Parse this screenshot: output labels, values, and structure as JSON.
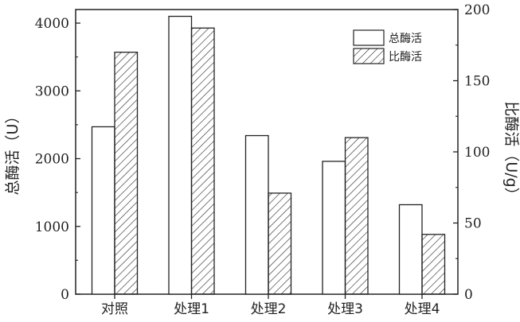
{
  "chart_data": {
    "type": "bar",
    "categories": [
      "对照",
      "处理1",
      "处理2",
      "处理3",
      "处理4"
    ],
    "series": [
      {
        "name": "总酶活",
        "axis": "left",
        "pattern": "none",
        "values": [
          2470,
          4100,
          2340,
          1960,
          1320
        ]
      },
      {
        "name": "比酶活",
        "axis": "right",
        "pattern": "hatch",
        "values": [
          170,
          187,
          71,
          110,
          42
        ]
      }
    ],
    "yleft": {
      "label": "总酶活（U）",
      "lim": [
        0,
        4200
      ],
      "ticks": [
        0,
        1000,
        2000,
        3000,
        4000
      ]
    },
    "yright": {
      "label": "比酶活（U/g）",
      "lim": [
        0,
        200
      ],
      "ticks": [
        0,
        50,
        100,
        150,
        200
      ]
    },
    "legend": {
      "position": "top-right"
    },
    "grid": false,
    "colors": {
      "bar_fill": "#ffffff",
      "stroke": "#222222",
      "hatch": "#333333"
    }
  }
}
